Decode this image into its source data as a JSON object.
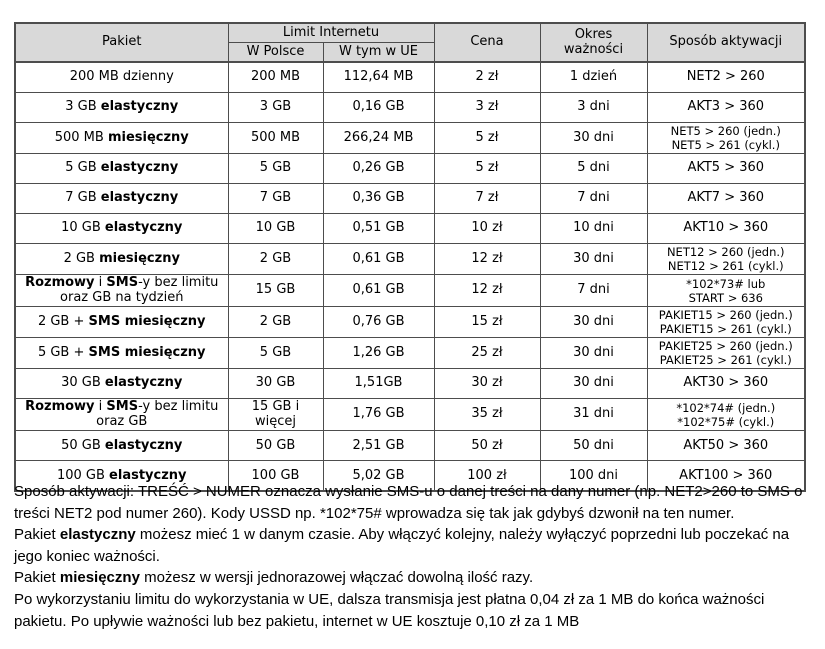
{
  "colors": {
    "page_background": "#ffffff",
    "header_background": "#d9d9d9",
    "border": "#4d4d4d",
    "text": "#000000"
  },
  "table": {
    "header": {
      "pakiet": "Pakiet",
      "limit_internetu": "Limit Internetu",
      "w_polsce": "W Polsce",
      "w_tym_w_ue": "W tym w UE",
      "cena": "Cena",
      "okres_waznosci": "Okres ważności",
      "sposob_aktywacji": "Sposób aktywacji"
    },
    "rows": [
      {
        "pakiet": "200 MB dzienny",
        "w_polsce": "200 MB",
        "w_ue": "112,64 MB",
        "cena": "2 zł",
        "okres": "1 dzień",
        "aktywacja": "NET2 > 260"
      },
      {
        "pakiet": "3 GB **elastyczny**",
        "w_polsce": "3 GB",
        "w_ue": "0,16 GB",
        "cena": "3 zł",
        "okres": "3 dni",
        "aktywacja": "AKT3 > 360"
      },
      {
        "pakiet": "500 MB **miesięczny**",
        "w_polsce": "500 MB",
        "w_ue": "266,24 MB",
        "cena": "5 zł",
        "okres": "30 dni",
        "aktywacja": "NET5 > 260 (jedn.)\nNET5 > 261 (cykl.)"
      },
      {
        "pakiet": "5 GB **elastyczny**",
        "w_polsce": "5 GB",
        "w_ue": "0,26 GB",
        "cena": "5 zł",
        "okres": "5 dni",
        "aktywacja": "AKT5 > 360"
      },
      {
        "pakiet": "7 GB **elastyczny**",
        "w_polsce": "7 GB",
        "w_ue": "0,36 GB",
        "cena": "7 zł",
        "okres": "7 dni",
        "aktywacja": "AKT7 > 360"
      },
      {
        "pakiet": "10 GB **elastyczny**",
        "w_polsce": "10 GB",
        "w_ue": "0,51 GB",
        "cena": "10 zł",
        "okres": "10 dni",
        "aktywacja": "AKT10 > 360"
      },
      {
        "pakiet": "2 GB **miesięczny**",
        "w_polsce": "2 GB",
        "w_ue": "0,61 GB",
        "cena": "12 zł",
        "okres": "30 dni",
        "aktywacja": "NET12 > 260 (jedn.)\nNET12 > 261 (cykl.)"
      },
      {
        "pakiet": "**Rozmowy** i **SMS**-y bez limitu oraz GB na tydzień",
        "w_polsce": "15 GB",
        "w_ue": "0,61 GB",
        "cena": "12 zł",
        "okres": "7 dni",
        "aktywacja": "*102*73# lub\nSTART > 636"
      },
      {
        "pakiet": "2 GB + **SMS miesięczny**",
        "w_polsce": "2 GB",
        "w_ue": "0,76 GB",
        "cena": "15 zł",
        "okres": "30 dni",
        "aktywacja": "PAKIET15 > 260 (jedn.)\nPAKIET15 > 261 (cykl.)"
      },
      {
        "pakiet": "5 GB + **SMS miesięczny**",
        "w_polsce": "5 GB",
        "w_ue": "1,26 GB",
        "cena": "25 zł",
        "okres": "30 dni",
        "aktywacja": "PAKIET25 > 260 (jedn.)\nPAKIET25 > 261 (cykl.)"
      },
      {
        "pakiet": "30 GB **elastyczny**",
        "w_polsce": "30 GB",
        "w_ue": "1,51GB",
        "cena": "30 zł",
        "okres": "30 dni",
        "aktywacja": "AKT30 > 360"
      },
      {
        "pakiet": "**Rozmowy** i **SMS**-y bez limitu oraz GB",
        "w_polsce": "15 GB i więcej",
        "w_ue": "1,76 GB",
        "cena": "35 zł",
        "okres": "31 dni",
        "aktywacja": "*102*74# (jedn.)\n*102*75# (cykl.)"
      },
      {
        "pakiet": "50 GB **elastyczny**",
        "w_polsce": "50 GB",
        "w_ue": "2,51 GB",
        "cena": "50 zł",
        "okres": "50 dni",
        "aktywacja": "AKT50 > 360"
      },
      {
        "pakiet": "100 GB **elastyczny**",
        "w_polsce": "100 GB",
        "w_ue": "5,02 GB",
        "cena": "100 zł",
        "okres": "100 dni",
        "aktywacja": "AKT100 > 360"
      }
    ]
  },
  "footer": {
    "paragraphs": [
      "Sposób aktywacji: TREŚĆ > NUMER oznacza wysłanie SMS-u o danej treści na dany numer (np. NET2>260 to SMS o treści NET2 pod numer 260). Kody USSD np. *102*75# wprowadza się tak jak gdybyś dzwonił na ten numer.",
      "Pakiet **elastyczny** możesz mieć 1 w danym czasie. Aby włączyć kolejny, należy wyłączyć poprzedni lub poczekać na jego koniec ważności.",
      "Pakiet **miesięczny** możesz w wersji jednorazowej włączać dowolną ilość razy.",
      "Po wykorzystaniu limitu do wykorzystania w UE, dalsza transmisja jest płatna 0,04 zł za 1 MB do końca ważności pakietu. Po upływie ważności lub bez pakietu, internet w UE kosztuje 0,10 zł za 1 MB"
    ]
  }
}
